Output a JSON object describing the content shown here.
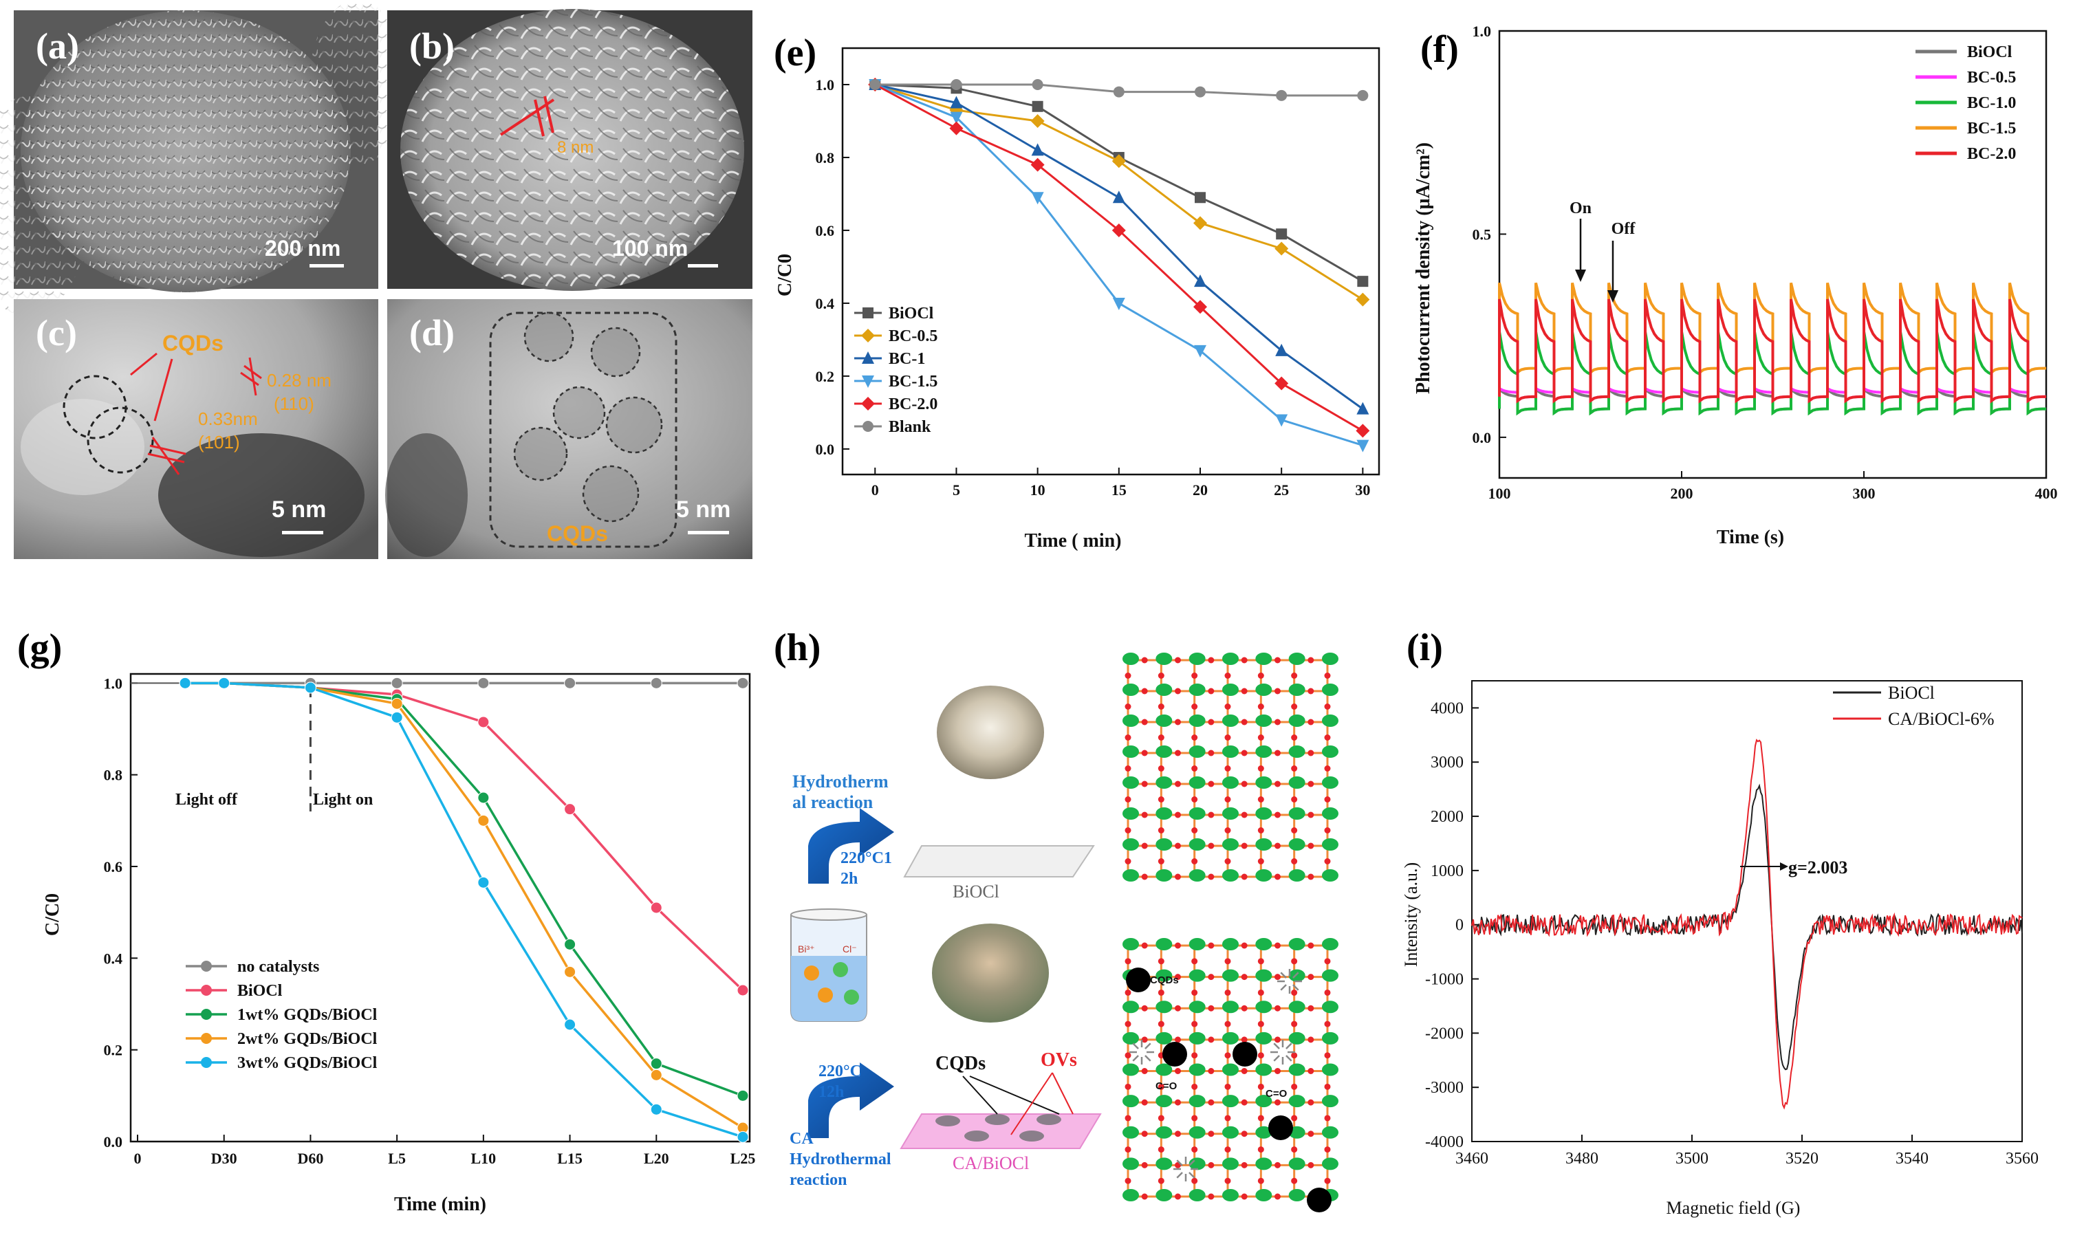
{
  "panels": {
    "a": {
      "label": "(a)",
      "scale": "200 nm"
    },
    "b": {
      "label": "(b)",
      "scale": "100 nm",
      "annotation": "8 nm"
    },
    "c": {
      "label": "(c)",
      "scale": "5 nm",
      "cqd_label": "CQDs",
      "d1": "0.28 nm",
      "hkl1": "(110)",
      "d2": "0.33nm",
      "hkl2": "(101)"
    },
    "d": {
      "label": "(d)",
      "scale": "5 nm",
      "cqd_label": "CQDs"
    },
    "e": {
      "label": "(e)"
    },
    "f": {
      "label": "(f)",
      "on": "On",
      "off": "Off"
    },
    "g": {
      "label": "(g)",
      "light_off": "Light off",
      "light_on": "Light on"
    },
    "h": {
      "label": "(h)",
      "hydro1": [
        "Hydrotherm",
        "al reaction"
      ],
      "cond1": [
        "220°C1",
        "2h"
      ],
      "product1": "BiOCl",
      "cond2": [
        "220°C",
        "12h"
      ],
      "hydro2": [
        "CA",
        "Hydrothermal",
        "reaction"
      ],
      "product2": "CA/BiOCl",
      "cqds": "CQDs",
      "ovs": "OVs",
      "beaker_ions": [
        "Bi³⁺",
        "Cl⁻"
      ],
      "lattice_labels": [
        "CQDs",
        "C=O",
        "C=O"
      ]
    },
    "i": {
      "label": "(i)",
      "g_value": "g=2.003"
    }
  },
  "colors": {
    "red": "#e8232a",
    "orange": "#f39a1e",
    "green": "#18b83a",
    "magenta": "#ff33ff",
    "gray": "#777777",
    "darkblue": "#1f5fa8",
    "lightblue": "#3ea0e0",
    "cyan": "#19b2e8",
    "pink": "#ef4a6a"
  },
  "chart_data": [
    {
      "id": "e",
      "type": "line",
      "title": "",
      "xlabel": "Time ( min)",
      "ylabel": "C/C0",
      "xlim": [
        -2,
        31
      ],
      "ylim": [
        -0.07,
        1.1
      ],
      "xticks": [
        0,
        5,
        10,
        15,
        20,
        25,
        30
      ],
      "yticks": [
        0.0,
        0.2,
        0.4,
        0.6,
        0.8,
        1.0
      ],
      "x": [
        0,
        5,
        10,
        15,
        20,
        25,
        30
      ],
      "series": [
        {
          "name": "BiOCl",
          "color": "#555555",
          "marker": "square",
          "values": [
            1.0,
            0.99,
            0.94,
            0.8,
            0.69,
            0.59,
            0.46
          ]
        },
        {
          "name": "BC-0.5",
          "color": "#e0a010",
          "marker": "diamond",
          "values": [
            1.0,
            0.93,
            0.9,
            0.79,
            0.62,
            0.55,
            0.41
          ]
        },
        {
          "name": "BC-1",
          "color": "#1f5fa8",
          "marker": "triangle",
          "values": [
            1.0,
            0.95,
            0.82,
            0.69,
            0.46,
            0.27,
            0.11
          ]
        },
        {
          "name": "BC-1.5",
          "color": "#4aa0e0",
          "marker": "triangle-down",
          "values": [
            1.0,
            0.91,
            0.69,
            0.4,
            0.27,
            0.08,
            0.01
          ]
        },
        {
          "name": "BC-2.0",
          "color": "#e8232a",
          "marker": "diamond",
          "values": [
            1.0,
            0.88,
            0.78,
            0.6,
            0.39,
            0.18,
            0.05
          ]
        },
        {
          "name": "Blank",
          "color": "#888888",
          "marker": "circle",
          "values": [
            1.0,
            1.0,
            1.0,
            0.98,
            0.98,
            0.97,
            0.97
          ]
        }
      ]
    },
    {
      "id": "f",
      "type": "line",
      "xlabel": "Time (s)",
      "ylabel": "Photocurrent density (μA/cm²)",
      "xlim": [
        100,
        400
      ],
      "ylim": [
        -0.1,
        1.0
      ],
      "xticks": [
        100,
        200,
        300,
        400
      ],
      "yticks": [
        0.0,
        0.5,
        1.0
      ],
      "on_off_period_s": 20,
      "first_on_s": 100,
      "series": [
        {
          "name": "BiOCl",
          "color": "#777777",
          "dark": 0.07,
          "peak": 0.12,
          "plateau": 0.1
        },
        {
          "name": "BC-0.5",
          "color": "#ff33ff",
          "dark": 0.1,
          "peak": 0.12,
          "plateau": 0.11
        },
        {
          "name": "BC-1.0",
          "color": "#18b83a",
          "dark": 0.07,
          "peak": 0.26,
          "plateau": 0.15
        },
        {
          "name": "BC-1.5",
          "color": "#f39a1e",
          "dark": 0.17,
          "peak": 0.38,
          "plateau": 0.3
        },
        {
          "name": "BC-2.0",
          "color": "#e8232a",
          "dark": 0.1,
          "peak": 0.34,
          "plateau": 0.23
        }
      ]
    },
    {
      "id": "g",
      "type": "line",
      "xlabel": "Time (min)",
      "ylabel": "C/C0",
      "categories": [
        "0",
        "D30",
        "D60",
        "L5",
        "L10",
        "L15",
        "L20",
        "L25"
      ],
      "ylim": [
        0.0,
        1.02
      ],
      "yticks": [
        0.0,
        0.2,
        0.4,
        0.6,
        0.8,
        1.0
      ],
      "marker_positions": [
        0.55,
        1,
        2,
        3,
        4,
        5,
        6,
        7
      ],
      "series": [
        {
          "name": "no catalysts",
          "color": "#888888",
          "values": [
            1.0,
            1.0,
            1.0,
            1.0,
            1.0,
            1.0,
            1.0,
            1.0
          ]
        },
        {
          "name": "BiOCl",
          "color": "#ef4a6a",
          "values": [
            1.0,
            1.0,
            0.99,
            0.975,
            0.915,
            0.725,
            0.51,
            0.33
          ]
        },
        {
          "name": "1wt% GQDs/BiOCl",
          "color": "#15a050",
          "values": [
            1.0,
            1.0,
            0.99,
            0.965,
            0.75,
            0.43,
            0.17,
            0.1
          ]
        },
        {
          "name": "2wt% GQDs/BiOCl",
          "color": "#f39a1e",
          "values": [
            1.0,
            1.0,
            0.99,
            0.955,
            0.7,
            0.37,
            0.145,
            0.03
          ]
        },
        {
          "name": "3wt% GQDs/BiOCl",
          "color": "#19b2e8",
          "values": [
            1.0,
            1.0,
            0.99,
            0.925,
            0.565,
            0.255,
            0.07,
            0.01
          ]
        }
      ]
    },
    {
      "id": "i",
      "type": "line",
      "xlabel": "Magnetic field (G)",
      "ylabel": "Intensity (a.u.)",
      "xlim": [
        3460,
        3560
      ],
      "ylim": [
        -4000,
        4500
      ],
      "xticks": [
        3460,
        3480,
        3500,
        3520,
        3540,
        3560
      ],
      "yticks": [
        -4000,
        -3000,
        -2000,
        -1000,
        0,
        1000,
        2000,
        3000,
        4000
      ],
      "series": [
        {
          "name": "BiOCl",
          "color": "#222222",
          "peak_max": 2550,
          "peak_min": -2650
        },
        {
          "name": "CA/BiOCl-6%",
          "color": "#e8232a",
          "peak_max": 3450,
          "peak_min": -3350
        }
      ]
    }
  ]
}
